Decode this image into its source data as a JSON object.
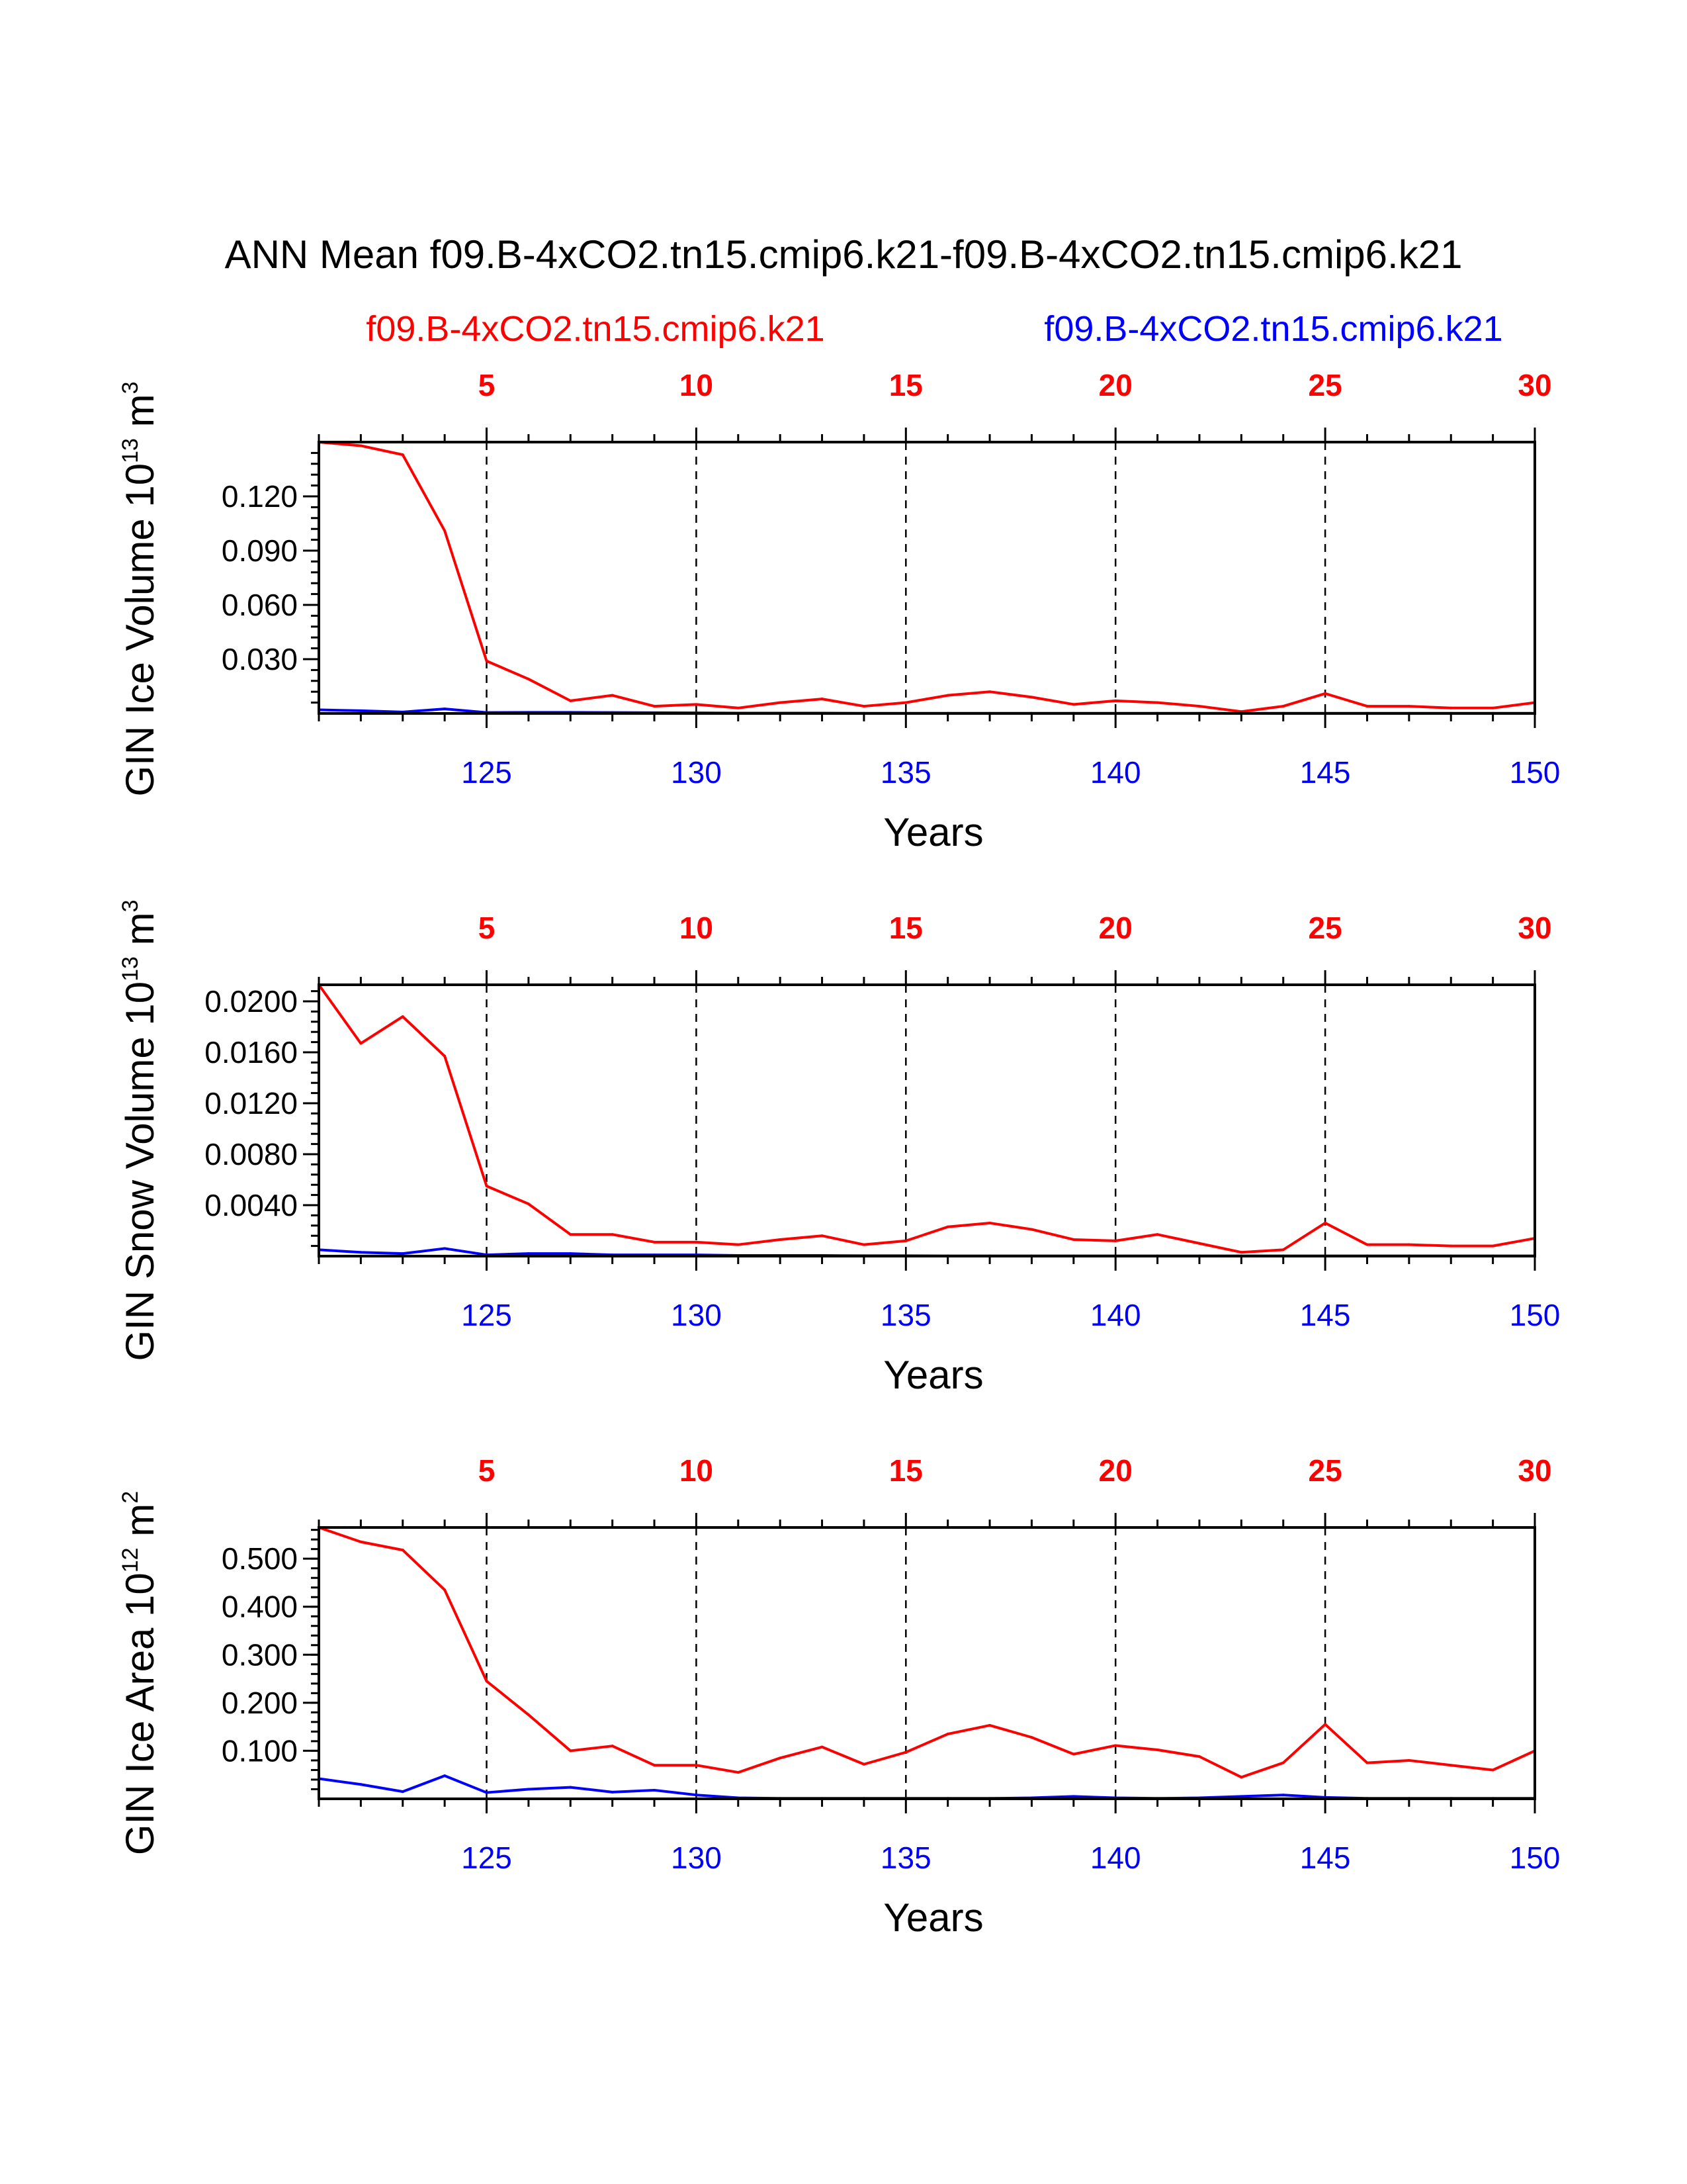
{
  "colors": {
    "case1": "#ff0000",
    "case2": "#0000ff",
    "axis": "#000000",
    "background": "#ffffff"
  },
  "chart_data": {
    "type": "line",
    "title": "ANN Mean f09.B-4xCO2.tn15.cmip6.k21-f09.B-4xCO2.tn15.cmip6.k21",
    "legend": {
      "case1": "f09.B-4xCO2.tn15.cmip6.k21",
      "case2": "f09.B-4xCO2.tn15.cmip6.k21"
    },
    "xlabel": "Years",
    "x_bottom_ticks": [
      "125",
      "130",
      "135",
      "140",
      "145",
      "150"
    ],
    "x_top_ticks": [
      "5",
      "10",
      "15",
      "20",
      "25",
      "30"
    ],
    "xlim": [
      121,
      150
    ],
    "x": [
      121,
      122,
      123,
      124,
      125,
      126,
      127,
      128,
      129,
      130,
      131,
      132,
      133,
      134,
      135,
      136,
      137,
      138,
      139,
      140,
      141,
      142,
      143,
      144,
      145,
      146,
      147,
      148,
      149,
      150
    ],
    "panels": [
      {
        "ylabel_base": "GIN Ice Volume 10",
        "ylabel_exp": "13",
        "ylabel_unit": " m",
        "ylabel_unit_exp": "3",
        "ylim": [
          0,
          0.15
        ],
        "y_ticks": [
          "0.030",
          "0.060",
          "0.090",
          "0.120"
        ],
        "series": [
          {
            "name": "case1",
            "values": [
              0.15,
              0.148,
              0.143,
              0.101,
              0.029,
              0.019,
              0.007,
              0.01,
              0.004,
              0.005,
              0.003,
              0.006,
              0.008,
              0.004,
              0.006,
              0.01,
              0.012,
              0.009,
              0.005,
              0.007,
              0.006,
              0.004,
              0.001,
              0.004,
              0.011,
              0.004,
              0.004,
              0.003,
              0.003,
              0.006
            ]
          },
          {
            "name": "case2",
            "values": [
              0.002,
              0.0015,
              0.0008,
              0.0025,
              0.0005,
              0.0006,
              0.0006,
              0.0005,
              0.0004,
              0.0003,
              0.0002,
              0.0002,
              0.0002,
              0.0001,
              0.0001,
              0.0001,
              0.0001,
              0.0001,
              0.0001,
              0.0001,
              0.0001,
              0.0001,
              0.0001,
              0.0001,
              0.0001,
              0.0001,
              0.0001,
              0.0001,
              0.0001,
              0.0001
            ]
          }
        ]
      },
      {
        "ylabel_base": "GIN Snow Volume 10",
        "ylabel_exp": "13",
        "ylabel_unit": " m",
        "ylabel_unit_exp": "3",
        "ylim": [
          0,
          0.0213
        ],
        "y_ticks": [
          "0.0040",
          "0.0080",
          "0.0120",
          "0.0160",
          "0.0200"
        ],
        "series": [
          {
            "name": "case1",
            "values": [
              0.0213,
              0.0167,
              0.0188,
              0.0157,
              0.0055,
              0.0041,
              0.0017,
              0.0017,
              0.0011,
              0.0011,
              0.0009,
              0.0013,
              0.0016,
              0.0009,
              0.0012,
              0.0023,
              0.0026,
              0.0021,
              0.0013,
              0.0012,
              0.0017,
              0.001,
              0.0003,
              0.0005,
              0.0026,
              0.0009,
              0.0009,
              0.0008,
              0.0008,
              0.0014
            ]
          },
          {
            "name": "case2",
            "values": [
              0.0005,
              0.0003,
              0.0002,
              0.0006,
              0.0001,
              0.0002,
              0.0002,
              0.0001,
              0.0001,
              0.0001,
              5e-05,
              5e-05,
              5e-05,
              3e-05,
              3e-05,
              2e-05,
              2e-05,
              2e-05,
              2e-05,
              2e-05,
              2e-05,
              2e-05,
              2e-05,
              2e-05,
              2e-05,
              2e-05,
              2e-05,
              2e-05,
              2e-05,
              2e-05
            ]
          }
        ]
      },
      {
        "ylabel_base": "GIN Ice Area 10",
        "ylabel_exp": "12",
        "ylabel_unit": " m",
        "ylabel_unit_exp": "2",
        "ylim": [
          0,
          0.565
        ],
        "y_ticks": [
          "0.100",
          "0.200",
          "0.300",
          "0.400",
          "0.500"
        ],
        "series": [
          {
            "name": "case1",
            "values": [
              0.565,
              0.535,
              0.518,
              0.435,
              0.245,
              0.175,
              0.1,
              0.11,
              0.07,
              0.07,
              0.055,
              0.085,
              0.108,
              0.072,
              0.097,
              0.135,
              0.153,
              0.128,
              0.093,
              0.111,
              0.102,
              0.088,
              0.045,
              0.075,
              0.155,
              0.075,
              0.08,
              0.07,
              0.06,
              0.1
            ]
          },
          {
            "name": "case2",
            "values": [
              0.042,
              0.03,
              0.015,
              0.048,
              0.013,
              0.02,
              0.024,
              0.014,
              0.018,
              0.008,
              0.002,
              0.001,
              0.001,
              0.001,
              0.001,
              0.001,
              0.001,
              0.002,
              0.005,
              0.002,
              0.001,
              0.002,
              0.005,
              0.008,
              0.003,
              0.001,
              0.001,
              0.001,
              0.001,
              0.001
            ]
          }
        ]
      }
    ]
  }
}
